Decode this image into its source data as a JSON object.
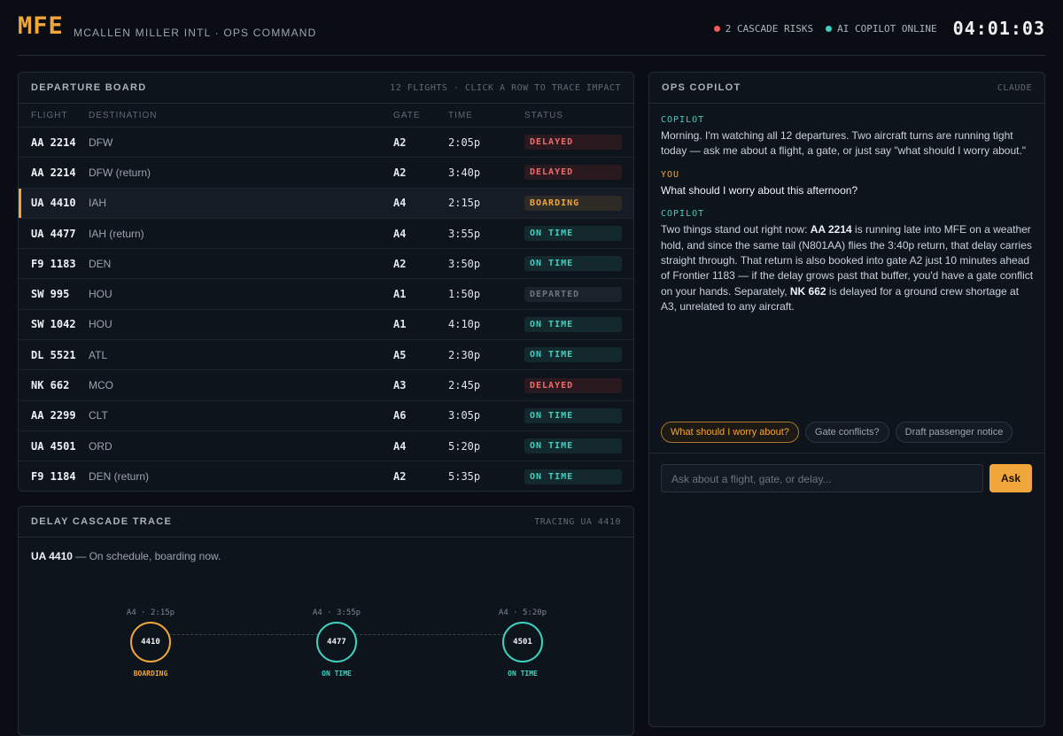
{
  "header": {
    "code": "MFE",
    "subtitle": "MCALLEN MILLER INTL · OPS COMMAND",
    "risks": "2 CASCADE RISKS",
    "copilot_status": "AI COPILOT ONLINE",
    "clock": "04:01:03"
  },
  "departure_board": {
    "title": "DEPARTURE BOARD",
    "note": "12 FLIGHTS · CLICK A ROW TO TRACE IMPACT",
    "columns": [
      "FLIGHT",
      "DESTINATION",
      "GATE",
      "TIME",
      "STATUS"
    ],
    "rows": [
      [
        "AA 2214",
        "DFW",
        "A2",
        "2:05p",
        "DELAYED"
      ],
      [
        "AA 2214",
        "DFW (return)",
        "A2",
        "3:40p",
        "DELAYED"
      ],
      [
        "UA 4410",
        "IAH",
        "A4",
        "2:15p",
        "BOARDING"
      ],
      [
        "UA 4477",
        "IAH (return)",
        "A4",
        "3:55p",
        "ON TIME"
      ],
      [
        "F9 1183",
        "DEN",
        "A2",
        "3:50p",
        "ON TIME"
      ],
      [
        "SW 995",
        "HOU",
        "A1",
        "1:50p",
        "DEPARTED"
      ],
      [
        "SW 1042",
        "HOU",
        "A1",
        "4:10p",
        "ON TIME"
      ],
      [
        "DL 5521",
        "ATL",
        "A5",
        "2:30p",
        "ON TIME"
      ],
      [
        "NK 662",
        "MCO",
        "A3",
        "2:45p",
        "DELAYED"
      ],
      [
        "AA 2299",
        "CLT",
        "A6",
        "3:05p",
        "ON TIME"
      ],
      [
        "UA 4501",
        "ORD",
        "A4",
        "5:20p",
        "ON TIME"
      ],
      [
        "F9 1184",
        "DEN (return)",
        "A2",
        "5:35p",
        "ON TIME"
      ]
    ]
  },
  "cascade": {
    "title": "DELAY CASCADE TRACE",
    "note": "TRACING UA 4410",
    "summary": [
      "UA 4410",
      " — On schedule, boarding now."
    ],
    "nodes": [
      {
        "label": "A4 · 2:15p",
        "id": "4410",
        "status": "BOARDING"
      },
      {
        "label": "A4 · 3:55p",
        "id": "4477",
        "status": "ON TIME"
      },
      {
        "label": "A4 · 5:20p",
        "id": "4501",
        "status": "ON TIME"
      }
    ]
  },
  "copilot": {
    "title": "OPS COPILOT",
    "note": "CLAUDE",
    "messages": [
      {
        "speaker": "COPILOT",
        "parts": [
          "Morning. I'm watching all 12 departures. Two aircraft turns are running tight today — ask me about a flight, a gate, or just say \"what should I worry about.\""
        ]
      },
      {
        "speaker": "YOU",
        "parts": [
          "What should I worry about this afternoon?"
        ]
      },
      {
        "speaker": "COPILOT",
        "parts": [
          "Two things stand out right now: ",
          "AA 2214",
          " is running late into MFE on a weather hold, and since the same tail (N801AA) flies the 3:40p return, that delay carries straight through. That return is also booked into gate A2 just 10 minutes ahead of Frontier 1183 — if the delay grows past that buffer, you'd have a gate conflict on your hands. Separately, ",
          "NK 662",
          " is delayed for a ground crew shortage at A3, unrelated to any aircraft."
        ]
      }
    ],
    "suggestions": [
      "What should I worry about?",
      "Gate conflicts?",
      "Draft passenger notice"
    ],
    "input_placeholder": "Ask about a flight, gate, or delay...",
    "button": "Ask"
  }
}
